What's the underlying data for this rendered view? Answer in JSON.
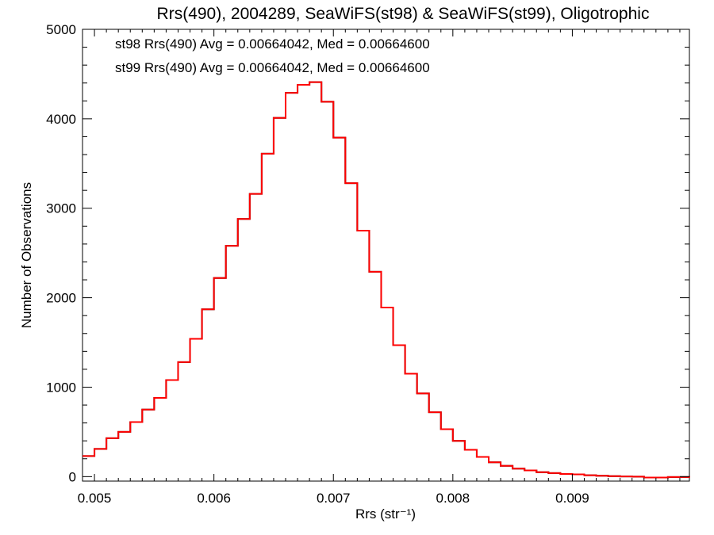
{
  "chart_data": {
    "type": "histogram",
    "title": "Rrs(490), 2004289, SeaWiFS(st98) & SeaWiFS(st99), Oligotrophic",
    "xlabel": "Rrs (str⁻¹)",
    "ylabel": "Number of Observations",
    "xlim": [
      0.0049,
      0.00998
    ],
    "ylim": [
      -50,
      5000
    ],
    "x_ticks": [
      {
        "value": 0.005,
        "label": "0.005"
      },
      {
        "value": 0.006,
        "label": "0.006"
      },
      {
        "value": 0.007,
        "label": "0.007"
      },
      {
        "value": 0.008,
        "label": "0.008"
      },
      {
        "value": 0.009,
        "label": "0.009"
      }
    ],
    "y_ticks": [
      {
        "value": 0,
        "label": "0"
      },
      {
        "value": 1000,
        "label": "1000"
      },
      {
        "value": 2000,
        "label": "2000"
      },
      {
        "value": 3000,
        "label": "3000"
      },
      {
        "value": 4000,
        "label": "4000"
      },
      {
        "value": 5000,
        "label": "5000"
      }
    ],
    "grid": false,
    "legend": {
      "placement": "top-left",
      "entries": [
        {
          "text": "st98 Rrs(490) Avg = 0.00664042, Med = 0.00664600",
          "color": "#000000"
        },
        {
          "text": "st99 Rrs(490) Avg = 0.00664042, Med = 0.00664600",
          "color": "#ff0000"
        }
      ]
    },
    "series": [
      {
        "color": "#000000",
        "x": [
          0.0049,
          0.005,
          0.0051,
          0.0052,
          0.0053,
          0.0054,
          0.0055,
          0.0056,
          0.0057,
          0.0058,
          0.0059,
          0.006,
          0.0061,
          0.0062,
          0.0063,
          0.0064,
          0.0065,
          0.0066,
          0.0067,
          0.0068,
          0.0069,
          0.007,
          0.0071,
          0.0072,
          0.0073,
          0.0074,
          0.0075,
          0.0076,
          0.0077,
          0.0078,
          0.0079,
          0.008,
          0.0081,
          0.0082,
          0.0083,
          0.0084,
          0.0085,
          0.0086,
          0.0087,
          0.0088,
          0.0089,
          0.009,
          0.0091,
          0.0092,
          0.0093,
          0.0094,
          0.0095,
          0.0096,
          0.0097,
          0.0098,
          0.00998
        ],
        "y": [
          230,
          310,
          430,
          500,
          610,
          750,
          880,
          1080,
          1280,
          1540,
          1870,
          2220,
          2580,
          2880,
          3160,
          3610,
          4010,
          4290,
          4380,
          4410,
          4190,
          3790,
          3280,
          2750,
          2290,
          1890,
          1470,
          1150,
          930,
          720,
          530,
          400,
          300,
          220,
          160,
          120,
          90,
          70,
          50,
          40,
          30,
          25,
          15,
          10,
          5,
          2,
          0,
          -10,
          -10,
          -5,
          -10
        ]
      },
      {
        "color": "#ff0000",
        "x": [
          0.0049,
          0.005,
          0.0051,
          0.0052,
          0.0053,
          0.0054,
          0.0055,
          0.0056,
          0.0057,
          0.0058,
          0.0059,
          0.006,
          0.0061,
          0.0062,
          0.0063,
          0.0064,
          0.0065,
          0.0066,
          0.0067,
          0.0068,
          0.0069,
          0.007,
          0.0071,
          0.0072,
          0.0073,
          0.0074,
          0.0075,
          0.0076,
          0.0077,
          0.0078,
          0.0079,
          0.008,
          0.0081,
          0.0082,
          0.0083,
          0.0084,
          0.0085,
          0.0086,
          0.0087,
          0.0088,
          0.0089,
          0.009,
          0.0091,
          0.0092,
          0.0093,
          0.0094,
          0.0095,
          0.0096,
          0.0097,
          0.0098,
          0.00998
        ],
        "y": [
          230,
          310,
          430,
          500,
          610,
          750,
          880,
          1080,
          1280,
          1540,
          1870,
          2220,
          2580,
          2880,
          3160,
          3610,
          4010,
          4290,
          4380,
          4410,
          4190,
          3790,
          3280,
          2750,
          2290,
          1890,
          1470,
          1150,
          930,
          720,
          530,
          400,
          300,
          220,
          160,
          120,
          90,
          70,
          50,
          40,
          30,
          25,
          15,
          10,
          5,
          2,
          0,
          -10,
          -10,
          -5,
          -10
        ]
      }
    ]
  }
}
